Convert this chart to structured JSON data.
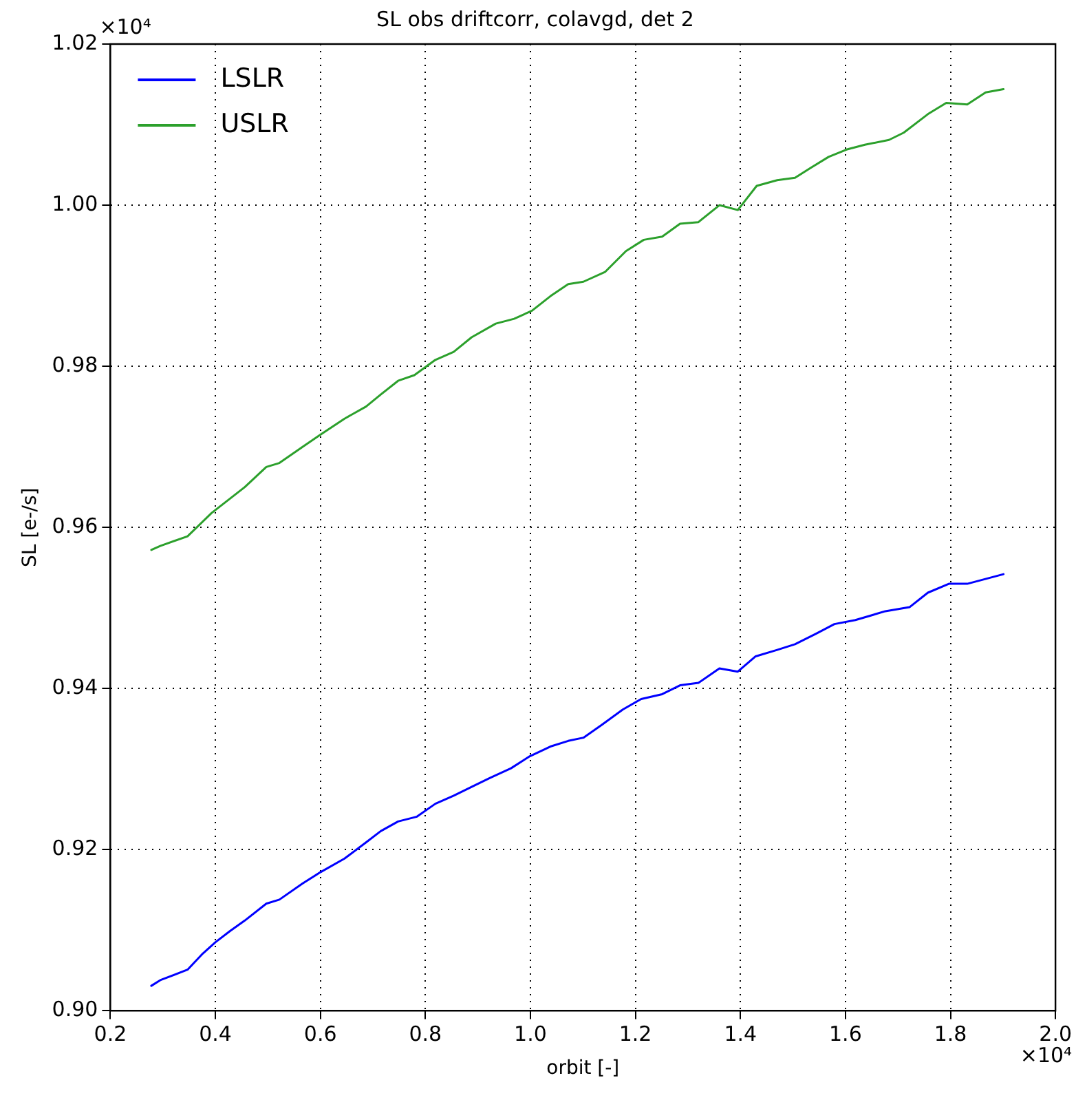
{
  "chart_data": {
    "type": "line",
    "title": "SL obs driftcorr, colavgd, det 2",
    "xlabel": "orbit [-]",
    "ylabel": "SL [e-/s]",
    "annotations": [
      "×10⁴",
      "×10⁴"
    ],
    "xlim": [
      0.2,
      2.0
    ],
    "xticks": [
      0.2,
      0.4,
      0.6,
      0.8,
      {
        "value": 1.0,
        "label": "1.0"
      },
      1.2,
      1.4,
      1.6,
      1.8,
      {
        "value": 2.0,
        "label": "2.0"
      }
    ],
    "ylim": [
      0.9,
      1.02
    ],
    "yticks": [
      {
        "value": 0.9,
        "label": "0.90"
      },
      0.92,
      0.94,
      0.96,
      0.98,
      {
        "value": 1.0,
        "label": "1.00"
      },
      {
        "value": 1.02,
        "label": "1.02"
      }
    ],
    "grid": true,
    "legend": "top left",
    "marker": "none",
    "line_style": "solid",
    "series": [
      {
        "name": "LSLR",
        "color": "#0000ff",
        "x": [
          0.278,
          0.295,
          0.347,
          0.376,
          0.4,
          0.428,
          0.456,
          0.497,
          0.522,
          0.566,
          0.6,
          0.646,
          0.687,
          0.715,
          0.748,
          0.784,
          0.819,
          0.854,
          0.888,
          0.923,
          0.963,
          0.999,
          1.038,
          1.072,
          1.101,
          1.136,
          1.176,
          1.211,
          1.251,
          1.285,
          1.32,
          1.36,
          1.395,
          1.429,
          1.47,
          1.504,
          1.544,
          1.579,
          1.619,
          1.676,
          1.722,
          1.757,
          1.797,
          1.832,
          1.901
        ],
        "values": [
          0.9031,
          0.9038,
          0.9051,
          0.9071,
          0.9085,
          0.9099,
          0.9112,
          0.9133,
          0.9138,
          0.9158,
          0.9172,
          0.9189,
          0.9209,
          0.9223,
          0.9235,
          0.9241,
          0.9257,
          0.9267,
          0.9278,
          0.9289,
          0.9301,
          0.9316,
          0.9328,
          0.9335,
          0.9339,
          0.9355,
          0.9374,
          0.9387,
          0.9393,
          0.9404,
          0.9407,
          0.9425,
          0.9421,
          0.944,
          0.9448,
          0.9455,
          0.9468,
          0.948,
          0.9485,
          0.9496,
          0.9501,
          0.9519,
          0.953,
          0.953,
          0.9542
        ]
      },
      {
        "name": "USLR",
        "color": "#2ca02c",
        "x": [
          0.278,
          0.295,
          0.347,
          0.393,
          0.456,
          0.497,
          0.522,
          0.566,
          0.6,
          0.646,
          0.687,
          0.715,
          0.748,
          0.779,
          0.819,
          0.854,
          0.888,
          0.934,
          0.969,
          1.003,
          1.038,
          1.072,
          1.101,
          1.142,
          1.182,
          1.216,
          1.251,
          1.285,
          1.32,
          1.36,
          1.395,
          1.431,
          1.47,
          1.504,
          1.533,
          1.568,
          1.602,
          1.637,
          1.683,
          1.711,
          1.757,
          1.792,
          1.832,
          1.867,
          1.901
        ],
        "values": [
          0.9572,
          0.9577,
          0.9589,
          0.9618,
          0.965,
          0.9675,
          0.968,
          0.97,
          0.9715,
          0.9735,
          0.975,
          0.9765,
          0.9782,
          0.9789,
          0.9808,
          0.9818,
          0.9836,
          0.9853,
          0.9859,
          0.9869,
          0.9887,
          0.9902,
          0.9905,
          0.9917,
          0.9943,
          0.9957,
          0.9961,
          0.9977,
          0.9979,
          1.0,
          0.9994,
          1.0024,
          1.0031,
          1.0034,
          1.0046,
          1.006,
          1.0069,
          1.0075,
          1.0081,
          1.009,
          1.0113,
          1.0127,
          1.0125,
          1.014,
          1.0144
        ]
      }
    ]
  }
}
